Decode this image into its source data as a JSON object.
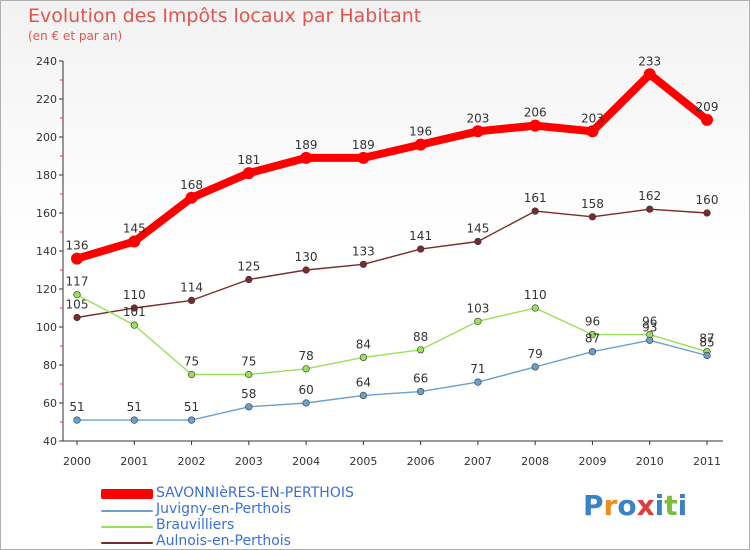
{
  "chart_data": {
    "type": "line",
    "title": "Evolution des Impôts locaux par Habitant",
    "subtitle": "(en € et par an)",
    "xlabel": "",
    "ylabel": "",
    "ylim": [
      40,
      240
    ],
    "yticks": [
      40,
      60,
      80,
      100,
      120,
      140,
      160,
      180,
      200,
      220,
      240
    ],
    "x": [
      "2000",
      "2001",
      "2002",
      "2003",
      "2004",
      "2005",
      "2006",
      "2007",
      "2008",
      "2009",
      "2010",
      "2011"
    ],
    "grid": false,
    "legend_position": "bottom-left",
    "series": [
      {
        "name": "SAVONNIèRES-EN-PERTHOIS",
        "color": "#ff0000",
        "thick": true,
        "values": [
          136,
          145,
          168,
          181,
          189,
          189,
          196,
          203,
          206,
          203,
          233,
          209
        ]
      },
      {
        "name": "Juvigny-en-Perthois",
        "color": "#6aa0cf",
        "thick": false,
        "values": [
          51,
          51,
          51,
          58,
          60,
          64,
          66,
          71,
          79,
          87,
          93,
          85
        ]
      },
      {
        "name": "Brauvilliers",
        "color": "#99e05a",
        "thick": false,
        "values": [
          117,
          101,
          75,
          75,
          78,
          84,
          88,
          103,
          110,
          96,
          96,
          87
        ]
      },
      {
        "name": "Aulnois-en-Perthois",
        "color": "#7b2b2b",
        "thick": false,
        "values": [
          105,
          110,
          114,
          125,
          130,
          133,
          141,
          145,
          161,
          158,
          162,
          160
        ]
      }
    ]
  },
  "branding": {
    "logo_text": "Proxiti"
  }
}
